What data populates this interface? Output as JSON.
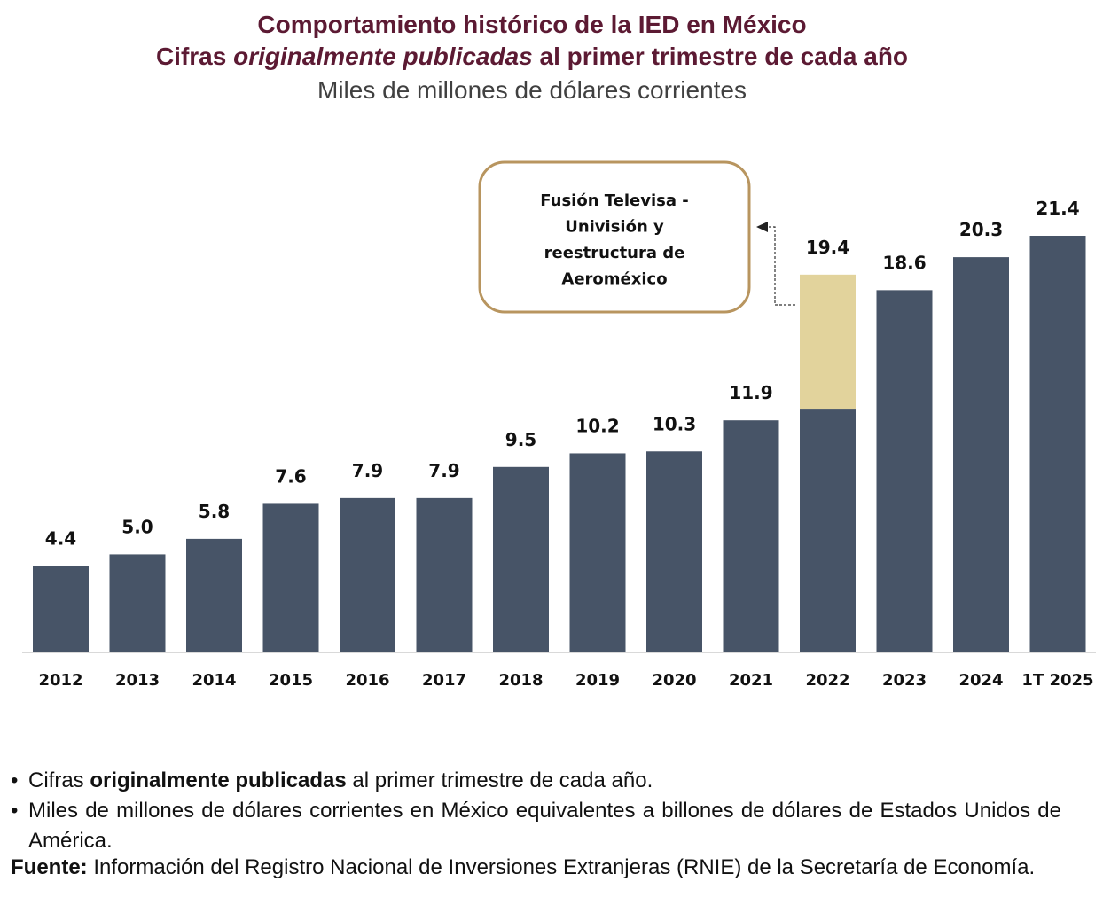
{
  "header": {
    "title_line1": "Comportamiento histórico de la IED en México",
    "title_line2_pre": "Cifras ",
    "title_line2_italic": "originalmente publicadas",
    "title_line2_post": " al primer trimestre de cada año",
    "subtitle": "Miles de millones de dólares corrientes"
  },
  "colors": {
    "title": "#5c1a33",
    "bar": "#475467",
    "highlight": "#e2d39c",
    "annotation_border": "#b8955f",
    "axis": "#d9d9d9"
  },
  "chart_data": {
    "type": "bar",
    "title": "Comportamiento histórico de la IED en México",
    "subtitle": "Miles de millones de dólares corrientes",
    "xlabel": "",
    "ylabel": "",
    "ylim": [
      0,
      21.4
    ],
    "grid": false,
    "categories": [
      "2012",
      "2013",
      "2014",
      "2015",
      "2016",
      "2017",
      "2018",
      "2019",
      "2020",
      "2021",
      "2022",
      "2023",
      "2024",
      "1T 2025"
    ],
    "values": [
      4.4,
      5.0,
      5.8,
      7.6,
      7.9,
      7.9,
      9.5,
      10.2,
      10.3,
      11.9,
      19.4,
      18.6,
      20.3,
      21.4
    ],
    "data_labels": [
      "4.4",
      "5.0",
      "5.8",
      "7.6",
      "7.9",
      "7.9",
      "9.5",
      "10.2",
      "10.3",
      "11.9",
      "19.4",
      "18.6",
      "20.3",
      "21.4"
    ],
    "stacked_segments": {
      "category": "2022",
      "base_value_estimate": 12.5,
      "highlight_value_estimate": 6.9,
      "highlight_label": "Fusión Televisa - Univisión y reestructura de Aeroméxico"
    },
    "annotation": {
      "lines": [
        "Fusión Televisa -",
        "Univisión y",
        "reestructura de",
        "Aeroméxico"
      ],
      "points_to": "2022"
    }
  },
  "notes": {
    "bullet1_pre": "Cifras ",
    "bullet1_bold": "originalmente publicadas",
    "bullet1_post": " al primer trimestre de cada año.",
    "bullet2": "Miles de millones de dólares corrientes en México equivalentes a billones de dólares de Estados Unidos de América.",
    "source_label": "Fuente:",
    "source_text": " Información del Registro Nacional de Inversiones Extranjeras (RNIE) de la Secretaría de Economía."
  }
}
